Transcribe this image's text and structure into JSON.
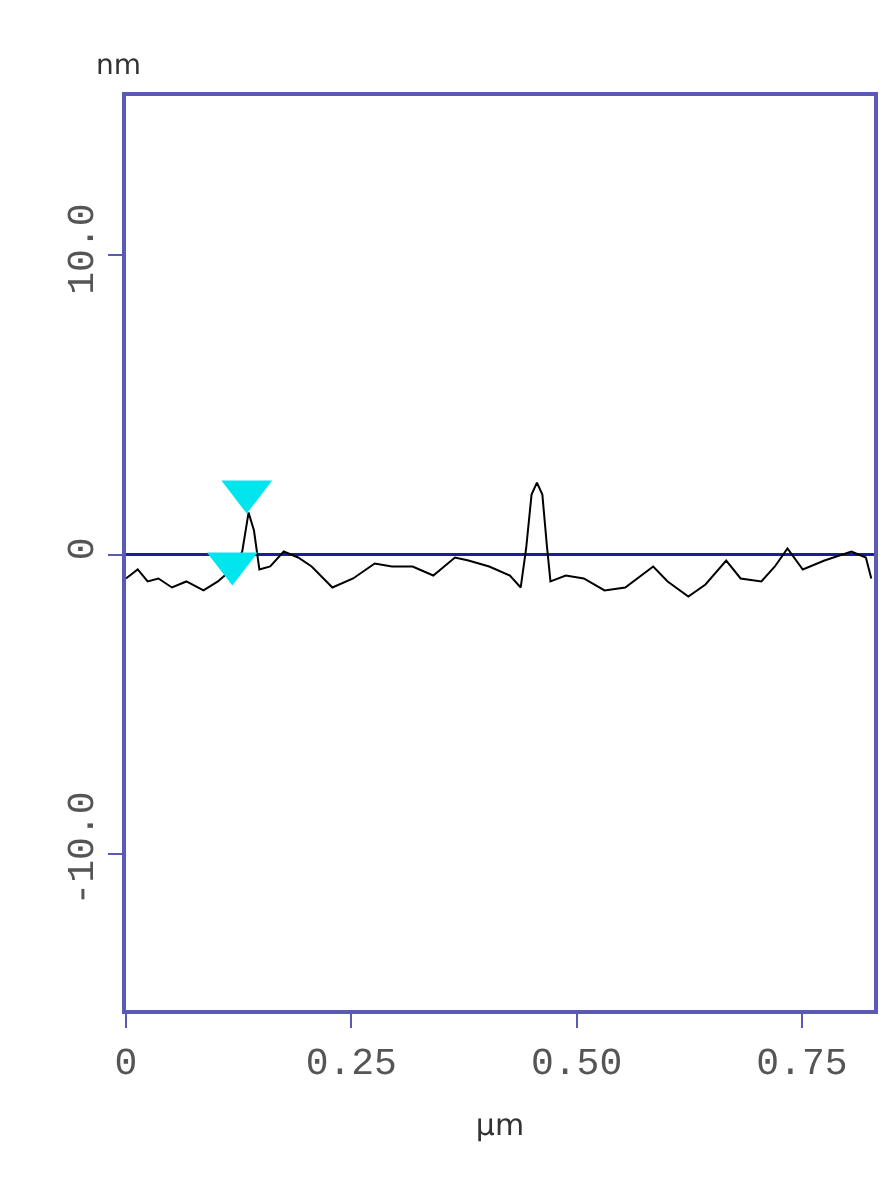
{
  "chart_data": {
    "type": "line",
    "xlabel": "µm",
    "ylabel": "nm",
    "xlim": [
      0,
      0.83
    ],
    "ylim": [
      -15.2,
      15.3
    ],
    "xticks": [
      0,
      {
        "value": 0.25,
        "label": "0.25"
      },
      {
        "value": 0.5,
        "label": "0.50"
      },
      {
        "value": 0.75,
        "label": "0.75"
      }
    ],
    "yticks": [
      {
        "value": -10,
        "label": "-10.0"
      },
      0,
      {
        "value": 10,
        "label": "10.0"
      }
    ],
    "grid": false,
    "legend": false,
    "ref_lines": [
      {
        "axis": "y",
        "value": 0,
        "color": "#1c1c9c"
      }
    ],
    "series": [
      {
        "color": "#000000",
        "marker": "none",
        "x": [
          0,
          0.013,
          0.024,
          0.036,
          0.051,
          0.067,
          0.086,
          0.102,
          0.117,
          0.129,
          0.136,
          0.142,
          0.148,
          0.16,
          0.175,
          0.191,
          0.206,
          0.229,
          0.252,
          0.276,
          0.295,
          0.318,
          0.341,
          0.365,
          0.38,
          0.403,
          0.426,
          0.438,
          0.444,
          0.45,
          0.456,
          0.462,
          0.467,
          0.471,
          0.488,
          0.508,
          0.531,
          0.554,
          0.585,
          0.601,
          0.624,
          0.643,
          0.666,
          0.682,
          0.705,
          0.72,
          0.734,
          0.751,
          0.775,
          0.805,
          0.821,
          0.827
        ],
        "values": [
          -0.8,
          -0.5,
          -0.9,
          -0.8,
          -1.1,
          -0.9,
          -1.2,
          -0.9,
          -0.5,
          0.1,
          1.4,
          0.8,
          -0.5,
          -0.4,
          0.1,
          -0.1,
          -0.4,
          -1.1,
          -0.8,
          -0.3,
          -0.4,
          -0.4,
          -0.7,
          -0.1,
          -0.2,
          -0.4,
          -0.7,
          -1.1,
          0.2,
          2.0,
          2.4,
          2.0,
          0.3,
          -0.9,
          -0.7,
          -0.8,
          -1.2,
          -1.1,
          -0.4,
          -0.9,
          -1.4,
          -1.0,
          -0.2,
          -0.8,
          -0.9,
          -0.4,
          0.2,
          -0.5,
          -0.2,
          0.1,
          -0.1,
          -0.8
        ]
      },
      {
        "type": "scatter",
        "color": "#00e5ee",
        "marker": "triangle",
        "x": [
          0.118,
          0.134
        ],
        "values": [
          -0.3,
          2.1
        ]
      }
    ]
  }
}
